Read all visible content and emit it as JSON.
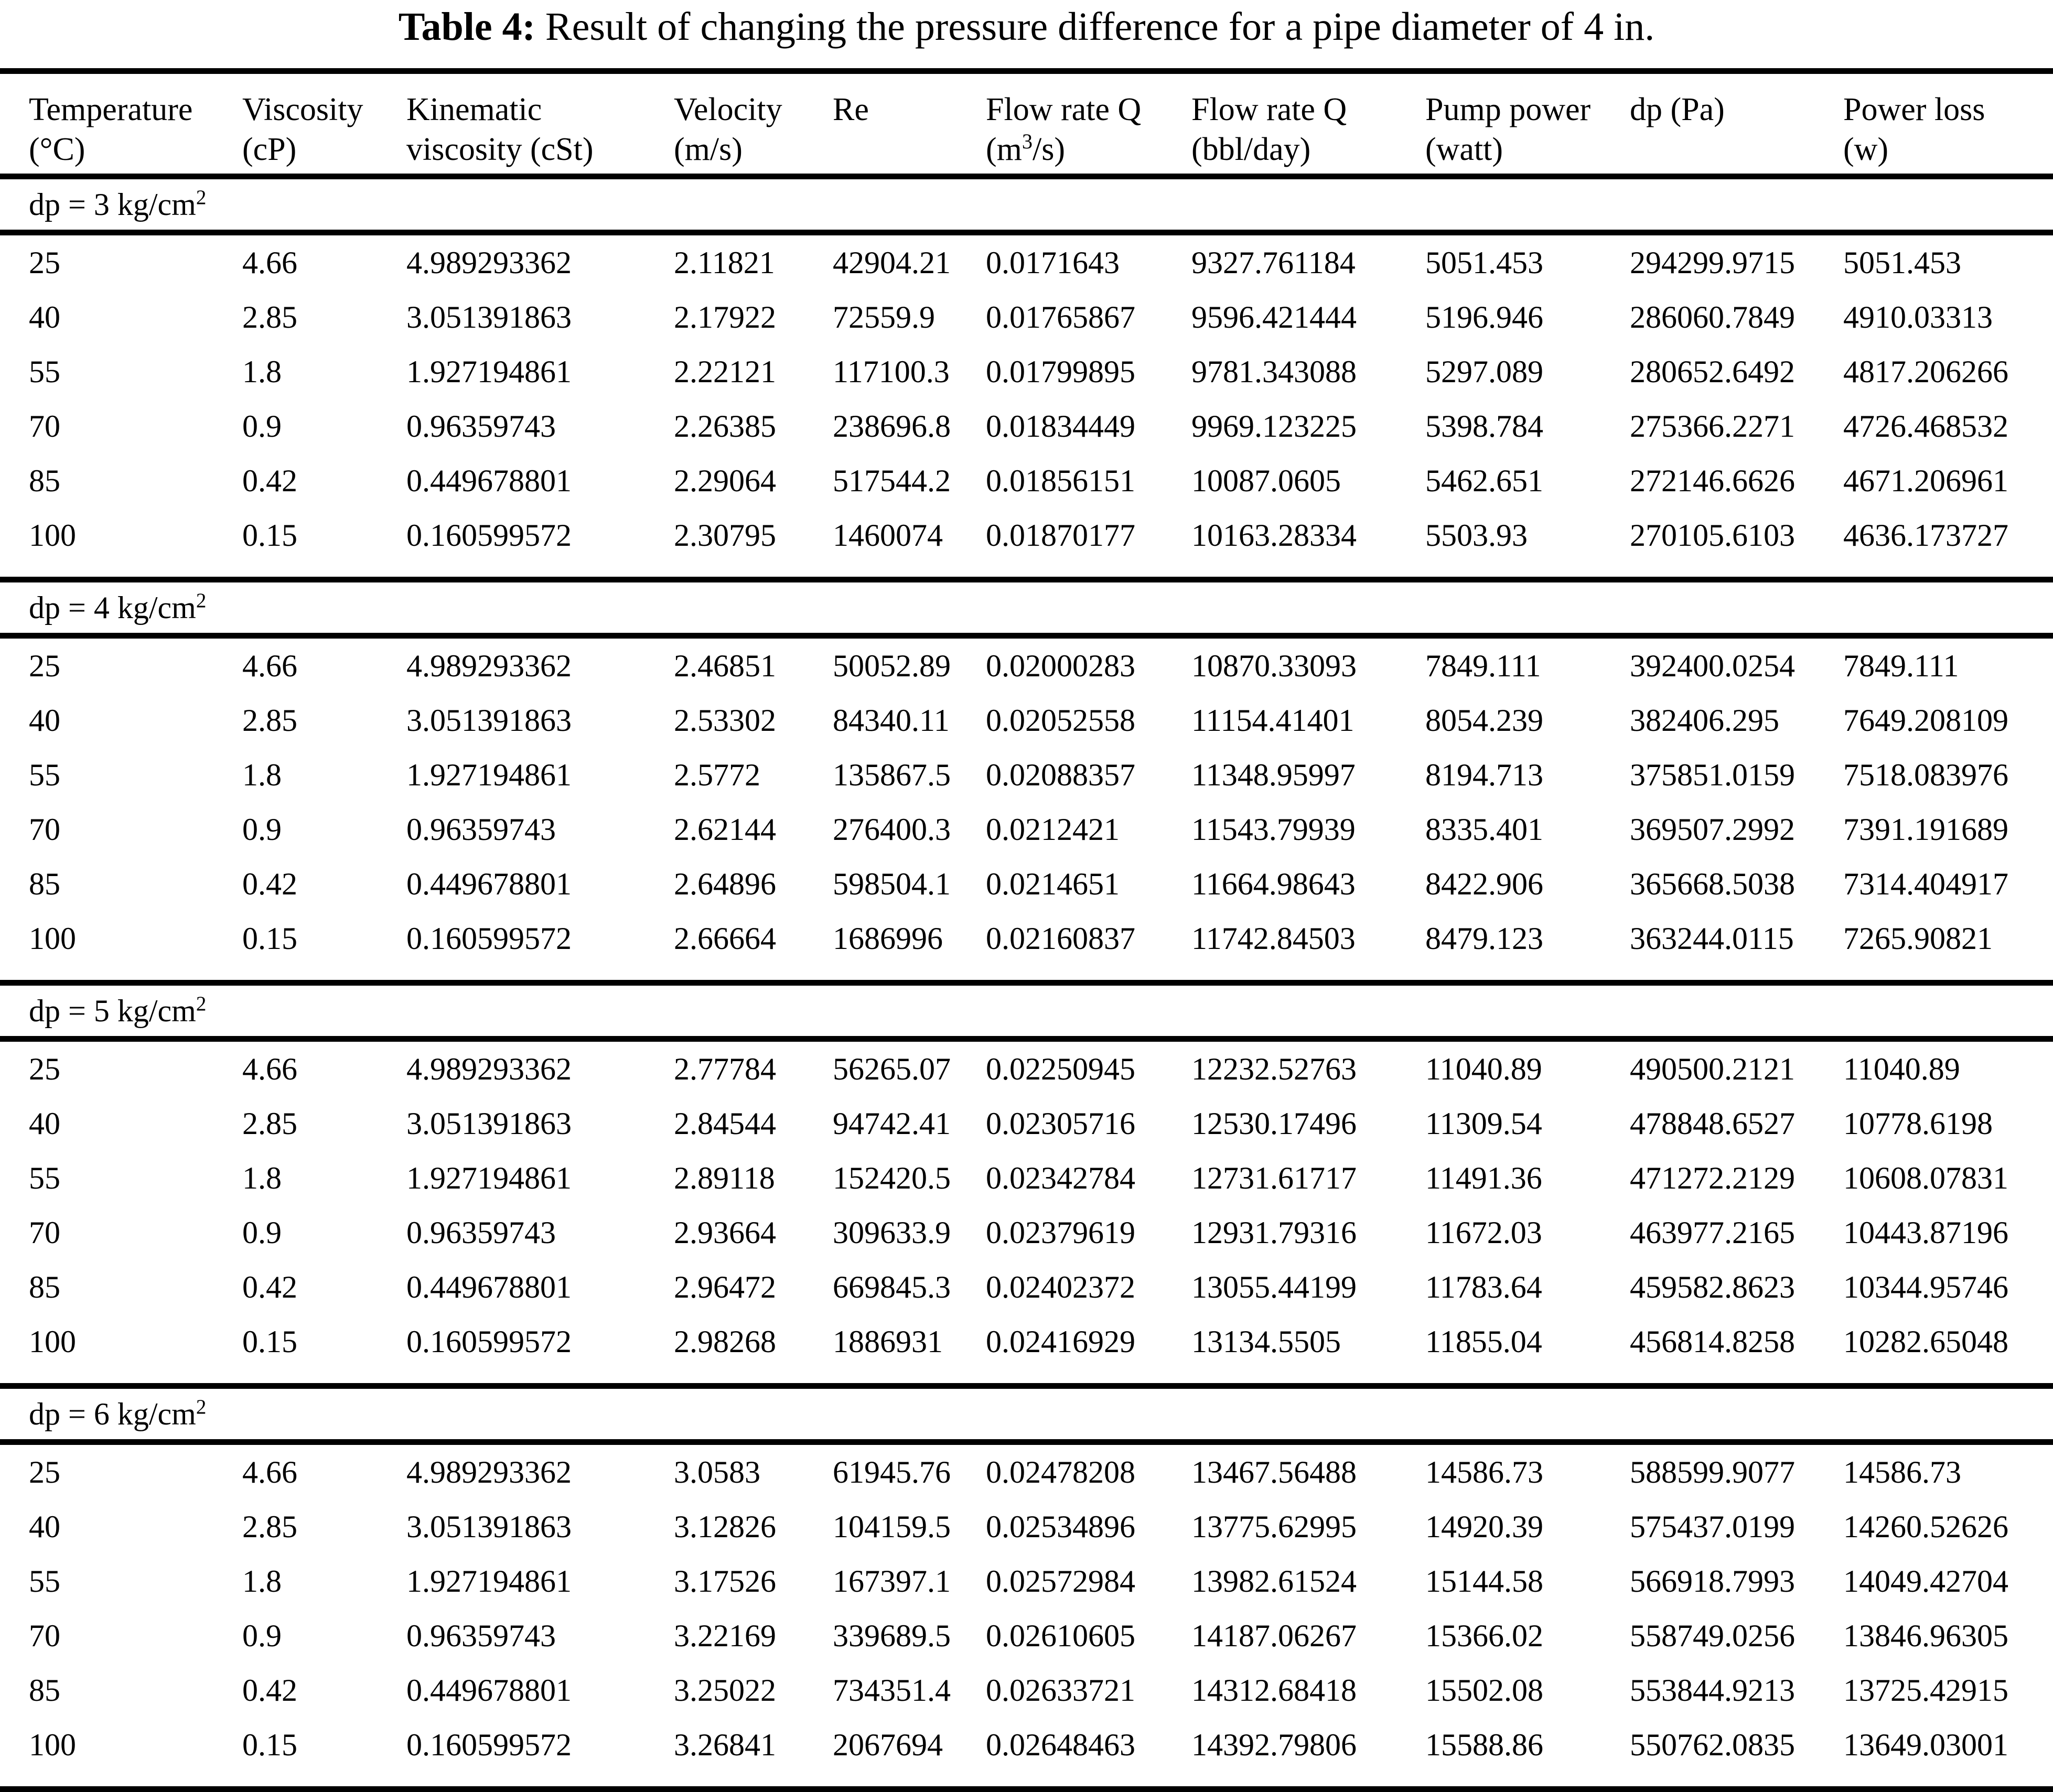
{
  "caption": {
    "label": "Table 4:",
    "text": "Result of changing the pressure difference for a pipe diameter of 4 in."
  },
  "colors": {
    "text": "#000000",
    "background": "#ffffff",
    "rule": "#000000"
  },
  "table": {
    "columns": [
      {
        "id": "temperature",
        "lines": [
          [
            "Temperature"
          ],
          [
            "(°C)"
          ]
        ]
      },
      {
        "id": "viscosity",
        "lines": [
          [
            "Viscosity"
          ],
          [
            "(cP)"
          ]
        ]
      },
      {
        "id": "kinematic-viscosity",
        "lines": [
          [
            "Kinematic"
          ],
          [
            "viscosity (cSt)"
          ]
        ]
      },
      {
        "id": "velocity",
        "lines": [
          [
            "Velocity"
          ],
          [
            "(m/s)"
          ]
        ]
      },
      {
        "id": "re",
        "lines": [
          [
            "Re"
          ],
          []
        ]
      },
      {
        "id": "flow-rate-m3s",
        "lines": [
          [
            "Flow rate Q"
          ],
          [
            "(m",
            {
              "sup": "3"
            },
            "/s)"
          ]
        ]
      },
      {
        "id": "flow-rate-bbl",
        "lines": [
          [
            "Flow rate Q"
          ],
          [
            "(bbl/day)"
          ]
        ]
      },
      {
        "id": "pump-power",
        "lines": [
          [
            "Pump power"
          ],
          [
            "(watt)"
          ]
        ]
      },
      {
        "id": "dp-pa",
        "lines": [
          [
            "dp (Pa)"
          ],
          []
        ]
      },
      {
        "id": "power-loss",
        "lines": [
          [
            "Power loss"
          ],
          [
            "(w)"
          ]
        ]
      }
    ],
    "sections": [
      {
        "label": {
          "text": "dp = 3 kg/cm",
          "sup": "2"
        },
        "rows": [
          [
            "25",
            "4.66",
            "4.989293362",
            "2.11821",
            "42904.21",
            "0.0171643",
            "9327.761184",
            "5051.453",
            "294299.9715",
            "5051.453"
          ],
          [
            "40",
            "2.85",
            "3.051391863",
            "2.17922",
            "72559.9",
            "0.01765867",
            "9596.421444",
            "5196.946",
            "286060.7849",
            "4910.03313"
          ],
          [
            "55",
            "1.8",
            "1.927194861",
            "2.22121",
            "117100.3",
            "0.01799895",
            "9781.343088",
            "5297.089",
            "280652.6492",
            "4817.206266"
          ],
          [
            "70",
            "0.9",
            "0.96359743",
            "2.26385",
            "238696.8",
            "0.01834449",
            "9969.123225",
            "5398.784",
            "275366.2271",
            "4726.468532"
          ],
          [
            "85",
            "0.42",
            "0.449678801",
            "2.29064",
            "517544.2",
            "0.01856151",
            "10087.0605",
            "5462.651",
            "272146.6626",
            "4671.206961"
          ],
          [
            "100",
            "0.15",
            "0.160599572",
            "2.30795",
            "1460074",
            "0.01870177",
            "10163.28334",
            "5503.93",
            "270105.6103",
            "4636.173727"
          ]
        ]
      },
      {
        "label": {
          "text": "dp = 4 kg/cm",
          "sup": "2"
        },
        "rows": [
          [
            "25",
            "4.66",
            "4.989293362",
            "2.46851",
            "50052.89",
            "0.02000283",
            "10870.33093",
            "7849.111",
            "392400.0254",
            "7849.111"
          ],
          [
            "40",
            "2.85",
            "3.051391863",
            "2.53302",
            "84340.11",
            "0.02052558",
            "11154.41401",
            "8054.239",
            "382406.295",
            "7649.208109"
          ],
          [
            "55",
            "1.8",
            "1.927194861",
            "2.5772",
            "135867.5",
            "0.02088357",
            "11348.95997",
            "8194.713",
            "375851.0159",
            "7518.083976"
          ],
          [
            "70",
            "0.9",
            "0.96359743",
            "2.62144",
            "276400.3",
            "0.0212421",
            "11543.79939",
            "8335.401",
            "369507.2992",
            "7391.191689"
          ],
          [
            "85",
            "0.42",
            "0.449678801",
            "2.64896",
            "598504.1",
            "0.0214651",
            "11664.98643",
            "8422.906",
            "365668.5038",
            "7314.404917"
          ],
          [
            "100",
            "0.15",
            "0.160599572",
            "2.66664",
            "1686996",
            "0.02160837",
            "11742.84503",
            "8479.123",
            "363244.0115",
            "7265.90821"
          ]
        ]
      },
      {
        "label": {
          "text": "dp = 5 kg/cm",
          "sup": "2"
        },
        "rows": [
          [
            "25",
            "4.66",
            "4.989293362",
            "2.77784",
            "56265.07",
            "0.02250945",
            "12232.52763",
            "11040.89",
            "490500.2121",
            "11040.89"
          ],
          [
            "40",
            "2.85",
            "3.051391863",
            "2.84544",
            "94742.41",
            "0.02305716",
            "12530.17496",
            "11309.54",
            "478848.6527",
            "10778.6198"
          ],
          [
            "55",
            "1.8",
            "1.927194861",
            "2.89118",
            "152420.5",
            "0.02342784",
            "12731.61717",
            "11491.36",
            "471272.2129",
            "10608.07831"
          ],
          [
            "70",
            "0.9",
            "0.96359743",
            "2.93664",
            "309633.9",
            "0.02379619",
            "12931.79316",
            "11672.03",
            "463977.2165",
            "10443.87196"
          ],
          [
            "85",
            "0.42",
            "0.449678801",
            "2.96472",
            "669845.3",
            "0.02402372",
            "13055.44199",
            "11783.64",
            "459582.8623",
            "10344.95746"
          ],
          [
            "100",
            "0.15",
            "0.160599572",
            "2.98268",
            "1886931",
            "0.02416929",
            "13134.5505",
            "11855.04",
            "456814.8258",
            "10282.65048"
          ]
        ]
      },
      {
        "label": {
          "text": "dp = 6 kg/cm",
          "sup": "2"
        },
        "rows": [
          [
            "25",
            "4.66",
            "4.989293362",
            "3.0583",
            "61945.76",
            "0.02478208",
            "13467.56488",
            "14586.73",
            "588599.9077",
            "14586.73"
          ],
          [
            "40",
            "2.85",
            "3.051391863",
            "3.12826",
            "104159.5",
            "0.02534896",
            "13775.62995",
            "14920.39",
            "575437.0199",
            "14260.52626"
          ],
          [
            "55",
            "1.8",
            "1.927194861",
            "3.17526",
            "167397.1",
            "0.02572984",
            "13982.61524",
            "15144.58",
            "566918.7993",
            "14049.42704"
          ],
          [
            "70",
            "0.9",
            "0.96359743",
            "3.22169",
            "339689.5",
            "0.02610605",
            "14187.06267",
            "15366.02",
            "558749.0256",
            "13846.96305"
          ],
          [
            "85",
            "0.42",
            "0.449678801",
            "3.25022",
            "734351.4",
            "0.02633721",
            "14312.68418",
            "15502.08",
            "553844.9213",
            "13725.42915"
          ],
          [
            "100",
            "0.15",
            "0.160599572",
            "3.26841",
            "2067694",
            "0.02648463",
            "14392.79806",
            "15588.86",
            "550762.0835",
            "13649.03001"
          ]
        ]
      }
    ]
  }
}
